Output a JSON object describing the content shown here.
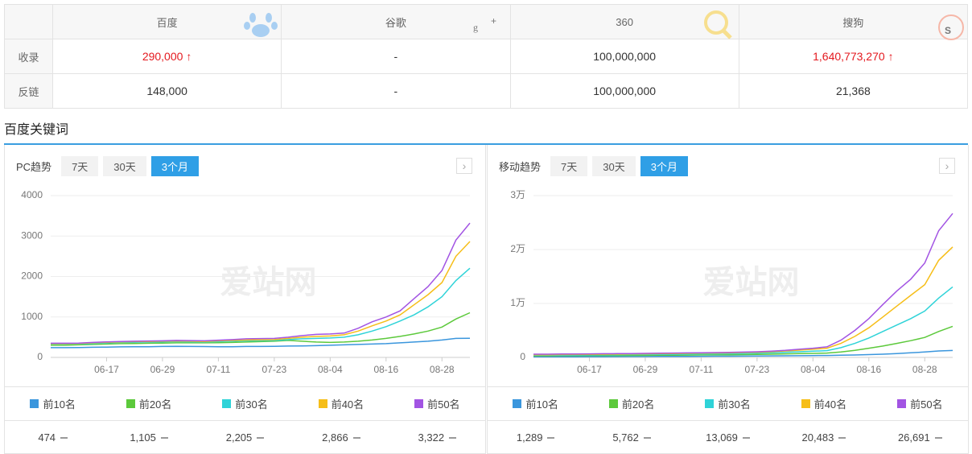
{
  "table": {
    "header": [
      "百度",
      "谷歌",
      "360",
      "搜狗"
    ],
    "rows": [
      {
        "label": "收录",
        "cells": [
          "290,000",
          "-",
          "100,000,000",
          "1,640,773,270"
        ],
        "up": [
          true,
          false,
          false,
          true
        ]
      },
      {
        "label": "反链",
        "cells": [
          "148,000",
          "-",
          "100,000,000",
          "21,368"
        ],
        "up": [
          false,
          false,
          false,
          false
        ]
      }
    ]
  },
  "section_title": "百度关键词",
  "tabs": [
    "7天",
    "30天",
    "3个月"
  ],
  "active_tab": 2,
  "chart_data": [
    {
      "type": "line",
      "title": "PC趋势",
      "watermark": "爱站网",
      "categories": [
        null,
        null,
        null,
        null,
        "06-17",
        null,
        null,
        null,
        "06-29",
        null,
        null,
        null,
        "07-11",
        null,
        null,
        null,
        "07-23",
        null,
        null,
        null,
        "08-04",
        null,
        null,
        null,
        "08-16",
        null,
        null,
        null,
        "08-28",
        null,
        null
      ],
      "ylim": [
        0,
        4000
      ],
      "yticks": [
        0,
        1000,
        2000,
        3000,
        4000
      ],
      "grid": true,
      "series": [
        {
          "name": "前10名",
          "color": "#3a96dd",
          "values": [
            240,
            240,
            245,
            250,
            255,
            260,
            262,
            265,
            270,
            275,
            270,
            268,
            265,
            265,
            270,
            270,
            275,
            280,
            285,
            290,
            300,
            310,
            320,
            330,
            340,
            360,
            380,
            400,
            430,
            470,
            474
          ]
        },
        {
          "name": "前20名",
          "color": "#5cc93b",
          "values": [
            300,
            300,
            310,
            320,
            330,
            340,
            345,
            350,
            355,
            360,
            360,
            360,
            365,
            370,
            380,
            390,
            400,
            420,
            400,
            380,
            370,
            380,
            400,
            430,
            470,
            520,
            580,
            650,
            750,
            950,
            1105
          ]
        },
        {
          "name": "前30名",
          "color": "#2fd3d8",
          "values": [
            330,
            330,
            335,
            345,
            360,
            370,
            375,
            380,
            385,
            390,
            385,
            380,
            390,
            400,
            410,
            415,
            420,
            440,
            460,
            470,
            480,
            500,
            560,
            650,
            760,
            900,
            1050,
            1250,
            1500,
            1900,
            2205
          ]
        },
        {
          "name": "前40名",
          "color": "#f6be18",
          "values": [
            340,
            340,
            345,
            360,
            375,
            385,
            390,
            395,
            400,
            405,
            400,
            395,
            410,
            420,
            430,
            435,
            440,
            470,
            500,
            520,
            530,
            560,
            650,
            780,
            900,
            1050,
            1300,
            1550,
            1850,
            2500,
            2866
          ]
        },
        {
          "name": "前50名",
          "color": "#a254e3",
          "values": [
            350,
            350,
            355,
            370,
            385,
            395,
            400,
            405,
            410,
            420,
            415,
            410,
            425,
            440,
            460,
            465,
            470,
            500,
            540,
            570,
            580,
            600,
            720,
            880,
            1000,
            1150,
            1450,
            1750,
            2150,
            2900,
            3322
          ]
        }
      ],
      "latest_labels": [
        "474",
        "1,105",
        "2,205",
        "2,866",
        "3,322"
      ]
    },
    {
      "type": "line",
      "title": "移动趋势",
      "watermark": "爱站网",
      "categories": [
        null,
        null,
        null,
        null,
        "06-17",
        null,
        null,
        null,
        "06-29",
        null,
        null,
        null,
        "07-11",
        null,
        null,
        null,
        "07-23",
        null,
        null,
        null,
        "08-04",
        null,
        null,
        null,
        "08-16",
        null,
        null,
        null,
        "08-28",
        null,
        null
      ],
      "ylim": [
        0,
        30000
      ],
      "yticks": [
        0,
        {
          "value": 10000,
          "label": "1万"
        },
        {
          "value": 20000,
          "label": "2万"
        },
        {
          "value": 30000,
          "label": "3万"
        }
      ],
      "grid": true,
      "series": [
        {
          "name": "前10名",
          "color": "#3a96dd",
          "values": [
            100,
            100,
            110,
            120,
            130,
            140,
            150,
            160,
            170,
            180,
            190,
            200,
            210,
            220,
            230,
            240,
            260,
            280,
            300,
            320,
            340,
            360,
            400,
            450,
            520,
            600,
            700,
            850,
            1000,
            1200,
            1289
          ]
        },
        {
          "name": "前20名",
          "color": "#5cc93b",
          "values": [
            300,
            300,
            310,
            320,
            330,
            340,
            350,
            360,
            380,
            400,
            420,
            440,
            460,
            480,
            500,
            520,
            560,
            600,
            650,
            700,
            750,
            800,
            1000,
            1300,
            1700,
            2100,
            2600,
            3100,
            3700,
            4800,
            5762
          ]
        },
        {
          "name": "前30名",
          "color": "#2fd3d8",
          "values": [
            400,
            400,
            420,
            440,
            460,
            480,
            500,
            520,
            540,
            560,
            580,
            600,
            620,
            650,
            680,
            720,
            780,
            850,
            950,
            1050,
            1150,
            1250,
            1800,
            2600,
            3600,
            4800,
            6000,
            7200,
            8600,
            11000,
            13069
          ]
        },
        {
          "name": "前40名",
          "color": "#f6be18",
          "values": [
            500,
            500,
            520,
            540,
            560,
            580,
            600,
            620,
            650,
            680,
            710,
            740,
            770,
            800,
            840,
            890,
            950,
            1050,
            1200,
            1350,
            1500,
            1700,
            2600,
            3900,
            5500,
            7500,
            9500,
            11500,
            13500,
            18000,
            20483
          ]
        },
        {
          "name": "前50名",
          "color": "#a254e3",
          "values": [
            600,
            600,
            620,
            640,
            660,
            680,
            700,
            720,
            750,
            780,
            810,
            840,
            870,
            900,
            940,
            990,
            1050,
            1150,
            1300,
            1500,
            1700,
            1950,
            3200,
            5000,
            7200,
            9800,
            12300,
            14500,
            17500,
            23500,
            26691
          ]
        }
      ],
      "latest_labels": [
        "1,289",
        "5,762",
        "13,069",
        "20,483",
        "26,691"
      ]
    }
  ]
}
